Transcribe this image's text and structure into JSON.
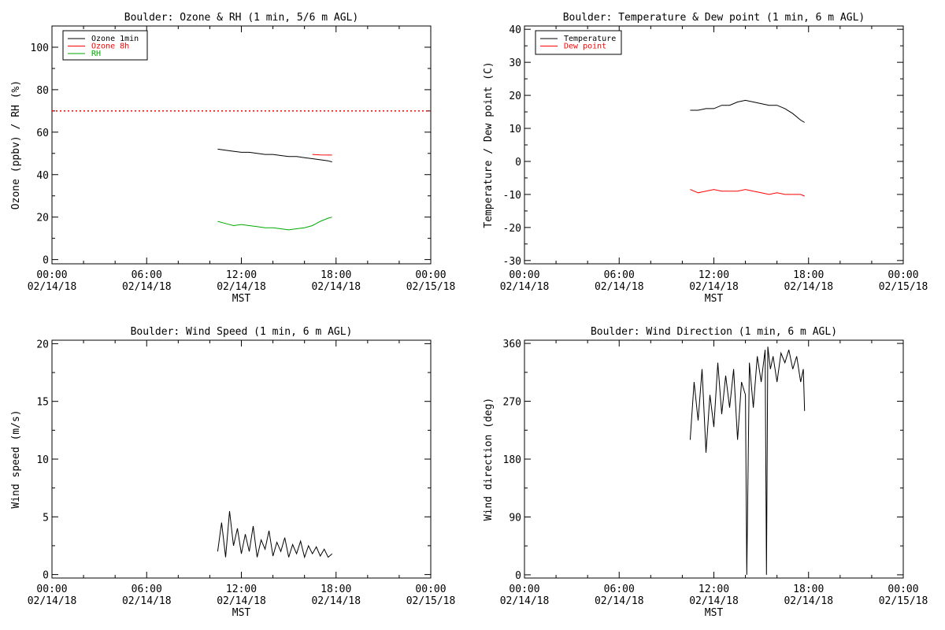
{
  "chart_data": [
    {
      "type": "line",
      "title": "Boulder: Ozone & RH (1 min, 5/6 m AGL)",
      "xlabel": "MST",
      "ylabel": "Ozone (ppbv) / RH (%)",
      "xlim": [
        "02/14/18 00:00",
        "02/15/18 00:00"
      ],
      "ylim": [
        -2,
        110
      ],
      "yticks": [
        0,
        20,
        40,
        60,
        80,
        100
      ],
      "xticks": [
        {
          "time": "00:00",
          "date": "02/14/18"
        },
        {
          "time": "06:00",
          "date": "02/14/18"
        },
        {
          "time": "12:00",
          "date": "02/14/18"
        },
        {
          "time": "18:00",
          "date": "02/14/18"
        },
        {
          "time": "00:00",
          "date": "02/15/18"
        }
      ],
      "legend_position": "top-left",
      "reference_line": {
        "y": 70,
        "color": "#ff0000",
        "style": "dotted"
      },
      "series": [
        {
          "name": "Ozone 1min",
          "color": "#000000",
          "x": [
            "10:30",
            "11:00",
            "11:30",
            "12:00",
            "12:30",
            "13:00",
            "13:30",
            "14:00",
            "14:30",
            "15:00",
            "15:30",
            "16:00",
            "16:30",
            "17:00",
            "17:30",
            "17:45"
          ],
          "y": [
            52,
            51.5,
            51,
            50.5,
            50.5,
            50,
            49.5,
            49.5,
            49,
            48.5,
            48.5,
            48,
            47.5,
            47,
            46.5,
            46
          ]
        },
        {
          "name": "Ozone 8h",
          "color": "#ff0000",
          "x": [
            "16:30",
            "17:00",
            "17:30",
            "17:45"
          ],
          "y": [
            49.5,
            49.3,
            49.2,
            49.2
          ]
        },
        {
          "name": "RH",
          "color": "#00aa00",
          "x": [
            "10:30",
            "11:00",
            "11:30",
            "12:00",
            "12:30",
            "13:00",
            "13:30",
            "14:00",
            "14:30",
            "15:00",
            "15:30",
            "16:00",
            "16:30",
            "17:00",
            "17:30",
            "17:45"
          ],
          "y": [
            18,
            17,
            16,
            16.5,
            16,
            15.5,
            15,
            15,
            14.5,
            14,
            14.5,
            15,
            16,
            18,
            19.5,
            20
          ]
        }
      ]
    },
    {
      "type": "line",
      "title": "Boulder: Temperature & Dew point (1 min, 6 m AGL)",
      "xlabel": "MST",
      "ylabel": "Temperature / Dew point (C)",
      "xlim": [
        "02/14/18 00:00",
        "02/15/18 00:00"
      ],
      "ylim": [
        -31,
        41
      ],
      "yticks": [
        -30,
        -20,
        -10,
        0,
        10,
        20,
        30,
        40
      ],
      "xticks": [
        {
          "time": "00:00",
          "date": "02/14/18"
        },
        {
          "time": "06:00",
          "date": "02/14/18"
        },
        {
          "time": "12:00",
          "date": "02/14/18"
        },
        {
          "time": "18:00",
          "date": "02/14/18"
        },
        {
          "time": "00:00",
          "date": "02/15/18"
        }
      ],
      "legend_position": "top-left",
      "series": [
        {
          "name": "Temperature",
          "color": "#000000",
          "x": [
            "10:30",
            "11:00",
            "11:30",
            "12:00",
            "12:30",
            "13:00",
            "13:30",
            "14:00",
            "14:30",
            "15:00",
            "15:30",
            "16:00",
            "16:30",
            "17:00",
            "17:30",
            "17:45"
          ],
          "y": [
            15.5,
            15.5,
            16,
            16,
            17,
            17,
            18,
            18.5,
            18,
            17.5,
            17,
            17,
            16,
            14.5,
            12.5,
            11.8
          ]
        },
        {
          "name": "Dew point",
          "color": "#ff0000",
          "x": [
            "10:30",
            "11:00",
            "11:30",
            "12:00",
            "12:30",
            "13:00",
            "13:30",
            "14:00",
            "14:30",
            "15:00",
            "15:30",
            "16:00",
            "16:30",
            "17:00",
            "17:30",
            "17:45"
          ],
          "y": [
            -8.5,
            -9.5,
            -9,
            -8.5,
            -9,
            -9,
            -9,
            -8.5,
            -9,
            -9.5,
            -10,
            -9.5,
            -10,
            -10,
            -10,
            -10.5
          ]
        }
      ]
    },
    {
      "type": "line",
      "title": "Boulder: Wind Speed (1 min, 6 m AGL)",
      "xlabel": "MST",
      "ylabel": "Wind speed (m/s)",
      "xlim": [
        "02/14/18 00:00",
        "02/15/18 00:00"
      ],
      "ylim": [
        -0.3,
        20.3
      ],
      "yticks": [
        0,
        5,
        10,
        15,
        20
      ],
      "xticks": [
        {
          "time": "00:00",
          "date": "02/14/18"
        },
        {
          "time": "06:00",
          "date": "02/14/18"
        },
        {
          "time": "12:00",
          "date": "02/14/18"
        },
        {
          "time": "18:00",
          "date": "02/14/18"
        },
        {
          "time": "00:00",
          "date": "02/15/18"
        }
      ],
      "series": [
        {
          "name": "",
          "color": "#000000",
          "x": [
            "10:30",
            "10:45",
            "11:00",
            "11:15",
            "11:30",
            "11:45",
            "12:00",
            "12:15",
            "12:30",
            "12:45",
            "13:00",
            "13:15",
            "13:30",
            "13:45",
            "14:00",
            "14:15",
            "14:30",
            "14:45",
            "15:00",
            "15:15",
            "15:30",
            "15:45",
            "16:00",
            "16:15",
            "16:30",
            "16:45",
            "17:00",
            "17:15",
            "17:30",
            "17:45"
          ],
          "y": [
            2,
            4.5,
            1.5,
            5.5,
            2.5,
            4,
            1.8,
            3.5,
            2,
            4.2,
            1.5,
            3,
            2.2,
            3.8,
            1.6,
            2.8,
            2,
            3.2,
            1.5,
            2.6,
            1.8,
            2.9,
            1.5,
            2.5,
            1.8,
            2.4,
            1.6,
            2.2,
            1.5,
            1.8
          ]
        }
      ]
    },
    {
      "type": "line",
      "title": "Boulder: Wind Direction (1 min, 6 m AGL)",
      "xlabel": "MST",
      "ylabel": "Wind direction (deg)",
      "xlim": [
        "02/14/18 00:00",
        "02/15/18 00:00"
      ],
      "ylim": [
        -5,
        365
      ],
      "yticks": [
        0,
        90,
        180,
        270,
        360
      ],
      "xticks": [
        {
          "time": "00:00",
          "date": "02/14/18"
        },
        {
          "time": "06:00",
          "date": "02/14/18"
        },
        {
          "time": "12:00",
          "date": "02/14/18"
        },
        {
          "time": "18:00",
          "date": "02/14/18"
        },
        {
          "time": "00:00",
          "date": "02/15/18"
        }
      ],
      "series": [
        {
          "name": "",
          "color": "#000000",
          "x": [
            "10:30",
            "10:45",
            "11:00",
            "11:15",
            "11:30",
            "11:45",
            "12:00",
            "12:15",
            "12:30",
            "12:45",
            "13:00",
            "13:15",
            "13:30",
            "13:45",
            "14:00",
            "14:05",
            "14:15",
            "14:30",
            "14:45",
            "15:00",
            "15:15",
            "15:20",
            "15:25",
            "15:35",
            "15:45",
            "16:00",
            "16:15",
            "16:30",
            "16:45",
            "17:00",
            "17:15",
            "17:30",
            "17:40",
            "17:45"
          ],
          "y": [
            210,
            300,
            240,
            320,
            190,
            280,
            230,
            330,
            250,
            310,
            260,
            320,
            210,
            300,
            280,
            0,
            330,
            260,
            340,
            300,
            350,
            0,
            355,
            320,
            340,
            300,
            345,
            330,
            350,
            320,
            340,
            300,
            320,
            255
          ]
        }
      ]
    }
  ]
}
